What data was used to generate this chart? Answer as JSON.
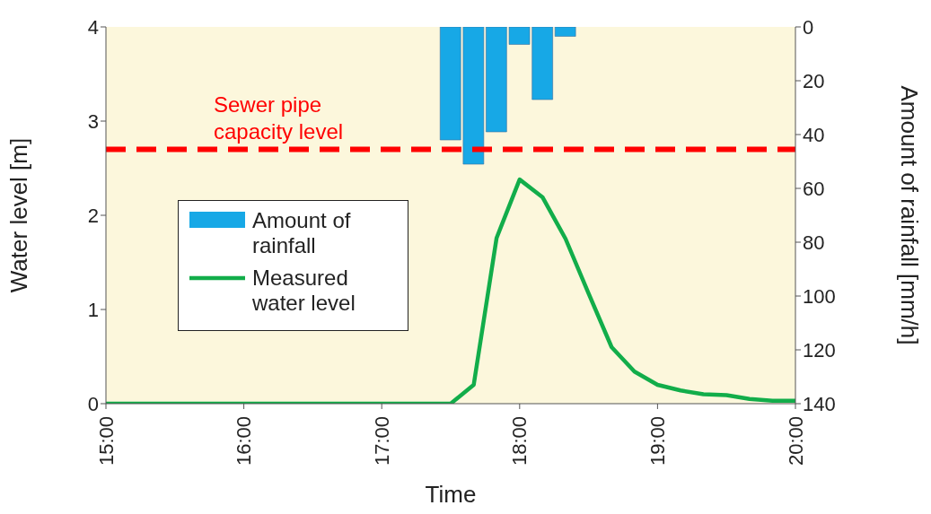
{
  "chart_data": {
    "type": "line",
    "xlabel": "Time",
    "ylabel": "Water level [m]",
    "y2label": "Amount of rainfall [mm/h]",
    "x": [
      15,
      17.5,
      17.667,
      17.833,
      18,
      18.167,
      18.333,
      18.5,
      18.667,
      18.833,
      19,
      19.167,
      19.333,
      19.5,
      19.667,
      19.833,
      20
    ],
    "series": [
      {
        "name": "Amount of rainfall",
        "type": "bar",
        "axis": "y2",
        "color": "#17a8e6",
        "x": [
          17.5,
          17.667,
          17.833,
          18,
          18.167,
          18.333
        ],
        "values": [
          42,
          51,
          39,
          6.5,
          27,
          3.5
        ]
      },
      {
        "name": "Measured water level",
        "color": "#12ad4a",
        "values": [
          0,
          0,
          0.2,
          1.76,
          2.38,
          2.19,
          1.75,
          1.17,
          0.6,
          0.34,
          0.2,
          0.14,
          0.1,
          0.09,
          0.05,
          0.03,
          0.03
        ]
      }
    ],
    "xlim": [
      15,
      20
    ],
    "xticks": [
      {
        "value": 15,
        "label": "15:00"
      },
      {
        "value": 16,
        "label": "16:00"
      },
      {
        "value": 17,
        "label": "17:00"
      },
      {
        "value": 18,
        "label": "18:00"
      },
      {
        "value": 19,
        "label": "19:00"
      },
      {
        "value": 20,
        "label": "20:00"
      }
    ],
    "ylim": [
      0,
      4
    ],
    "yticks": [
      0,
      1,
      2,
      3,
      4
    ],
    "y2lim": [
      140,
      0
    ],
    "y2ticks": [
      0,
      20,
      40,
      60,
      80,
      100,
      120,
      140
    ],
    "ref_lines": [
      {
        "axis": "y",
        "value": 2.7,
        "label": "Sewer pipe capacity level",
        "color": "#ff0000",
        "line_style": "dashed"
      }
    ],
    "legend": "left",
    "grid": false,
    "marker": "none"
  }
}
